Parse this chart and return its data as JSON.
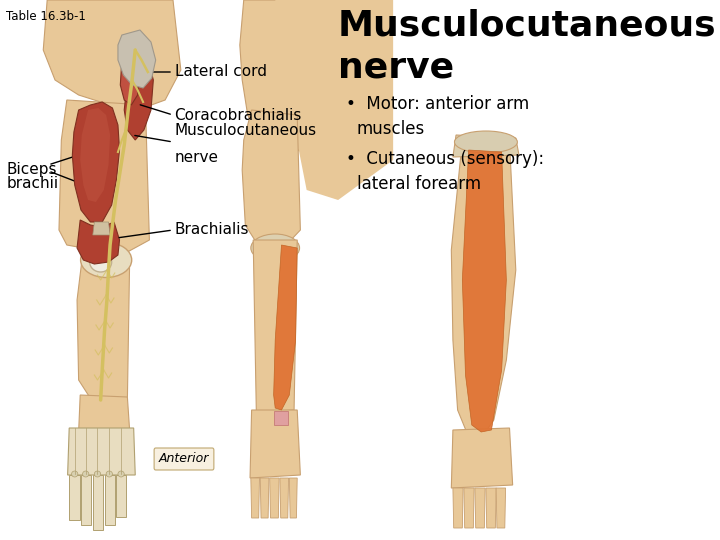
{
  "title_line1": "Musculocutaneous",
  "title_line2": "nerve",
  "table_label": "Table 16.3b-1",
  "title_fontsize": 26,
  "background_color": "#ffffff",
  "labels": {
    "lateral_cord": "Lateral cord",
    "coracobrachialis": "Coracobrachialis",
    "musculocutaneous": "Musculocutaneous\nnerve",
    "biceps_brachii": "Biceps\nbrachii",
    "brachialis": "Brachialis",
    "anterior": "Anterior"
  },
  "bullet_points": [
    "Motor: anterior arm\nmuscles",
    "Cutaneous (sensory):\nlateral forearm"
  ],
  "label_fontsize": 11,
  "bullet_fontsize": 12,
  "skin_color": "#e8c898",
  "skin_dark": "#c8a070",
  "muscle_color": "#b04030",
  "muscle_dark": "#803020",
  "orange_color": "#e07030",
  "nerve_color": "#d4c060",
  "bone_color": "#e8ddc0"
}
